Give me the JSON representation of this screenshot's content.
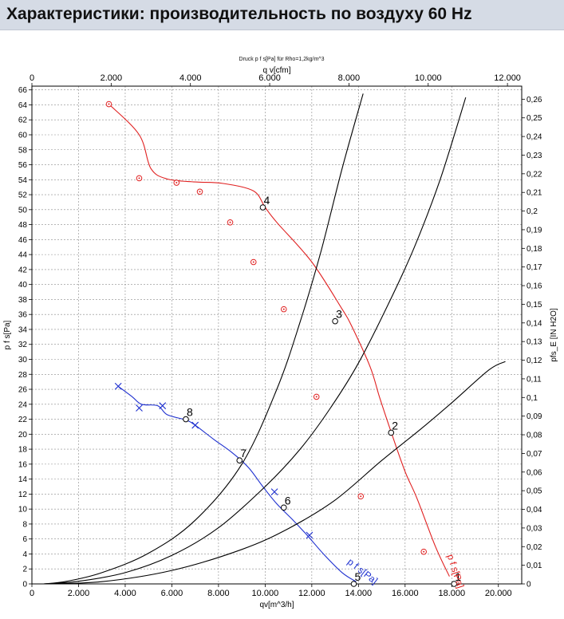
{
  "page_title": "Характеристики: производительность по воздуху 60 Hz",
  "chart_data": {
    "type": "line",
    "subtitle": "Druck p f s[Pa] für Rho=1,2kg/m^3",
    "x_bottom": {
      "label": "qv[m^3/h]",
      "range": [
        0,
        21000
      ],
      "ticks": [
        0,
        2000,
        4000,
        6000,
        8000,
        10000,
        12000,
        14000,
        16000,
        18000,
        20000
      ],
      "tick_labels": [
        "0",
        "2.000",
        "4.000",
        "6.000",
        "8.000",
        "10.000",
        "12.000",
        "14.000",
        "16.000",
        "18.000",
        "20.000"
      ]
    },
    "x_top": {
      "label": "q v[cfm]",
      "range": [
        0,
        12360
      ],
      "ticks": [
        0,
        2000,
        4000,
        6000,
        8000,
        10000,
        12000
      ],
      "tick_labels": [
        "0",
        "2.000",
        "4.000",
        "6.000",
        "8.000",
        "10.000",
        "12.000"
      ]
    },
    "y_left": {
      "label": "p f s[Pa]",
      "range": [
        0,
        66.5
      ],
      "ticks": [
        0,
        2,
        4,
        6,
        8,
        10,
        12,
        14,
        16,
        18,
        20,
        22,
        24,
        26,
        28,
        30,
        32,
        34,
        36,
        38,
        40,
        42,
        44,
        46,
        48,
        50,
        52,
        54,
        56,
        58,
        60,
        62,
        64,
        66
      ],
      "tick_labels": [
        "0",
        "2",
        "4",
        "6",
        "8",
        "10",
        "12",
        "14",
        "16",
        "18",
        "20",
        "22",
        "24",
        "26",
        "28",
        "30",
        "32",
        "34",
        "36",
        "38",
        "40",
        "42",
        "44",
        "46",
        "48",
        "50",
        "52",
        "54",
        "56",
        "58",
        "60",
        "62",
        "64",
        "66"
      ]
    },
    "y_right": {
      "label": "pfs_E [IN H2O]",
      "range": [
        0,
        0.267
      ],
      "ticks": [
        0,
        0.01,
        0.02,
        0.03,
        0.04,
        0.05,
        0.06,
        0.07,
        0.08,
        0.09,
        0.1,
        0.11,
        0.12,
        0.13,
        0.14,
        0.15,
        0.16,
        0.17,
        0.18,
        0.19,
        0.2,
        0.21,
        0.22,
        0.23,
        0.24,
        0.25,
        0.26
      ],
      "tick_labels": [
        "0",
        "0,01",
        "0,02",
        "0,03",
        "0,04",
        "0,05",
        "0,06",
        "0,07",
        "0,08",
        "0,09",
        "0,1",
        "0,11",
        "0,12",
        "0,13",
        "0,14",
        "0,15",
        "0,16",
        "0,17",
        "0,18",
        "0,19",
        "0,2",
        "0,21",
        "0,22",
        "0,23",
        "0,24",
        "0,25",
        "0,26"
      ]
    },
    "grid": true,
    "series": [
      {
        "name": "p f s[Pa]",
        "color": "#e02020",
        "marker": "circle",
        "points": [
          [
            3300,
            64.1
          ],
          [
            4600,
            60
          ],
          [
            5100,
            55.5
          ],
          [
            5800,
            54.1
          ],
          [
            7000,
            53.7
          ],
          [
            8200,
            53.5
          ],
          [
            9500,
            52.5
          ],
          [
            10000,
            50.3
          ],
          [
            10500,
            48.3
          ],
          [
            12000,
            43
          ],
          [
            13300,
            36.7
          ],
          [
            13700,
            34.5
          ],
          [
            14500,
            29
          ],
          [
            14900,
            25
          ],
          [
            15400,
            20.3
          ],
          [
            16000,
            15
          ],
          [
            16500,
            11.5
          ],
          [
            17300,
            5
          ],
          [
            17900,
            1
          ]
        ],
        "marker_points": [
          [
            3300,
            64.1
          ],
          [
            4600,
            54.2
          ],
          [
            6200,
            53.6
          ],
          [
            7200,
            52.4
          ],
          [
            8500,
            48.3
          ],
          [
            9500,
            43
          ],
          [
            10800,
            36.7
          ],
          [
            12200,
            25
          ],
          [
            14100,
            11.7
          ],
          [
            16800,
            4.3
          ]
        ]
      },
      {
        "name": "p f s[Pa]",
        "color": "#1d2fcf",
        "marker": "x",
        "points": [
          [
            3700,
            26.4
          ],
          [
            4300,
            25
          ],
          [
            4700,
            24
          ],
          [
            5400,
            23.8
          ],
          [
            5800,
            22.6
          ],
          [
            6600,
            21.9
          ],
          [
            7000,
            21.2
          ],
          [
            7800,
            19.3
          ],
          [
            8600,
            17.5
          ],
          [
            9300,
            15.5
          ],
          [
            9900,
            13
          ],
          [
            10500,
            10.7
          ],
          [
            11200,
            8.5
          ],
          [
            11800,
            6.5
          ],
          [
            12500,
            4
          ],
          [
            13300,
            1.5
          ],
          [
            13900,
            0.3
          ]
        ],
        "marker_points": [
          [
            3700,
            26.4
          ],
          [
            4600,
            23.5
          ],
          [
            5600,
            23.8
          ],
          [
            7000,
            21.2
          ],
          [
            10400,
            12.3
          ],
          [
            11900,
            6.5
          ]
        ]
      },
      {
        "name": "",
        "color": "#000000",
        "marker": "none",
        "points": [
          [
            500,
            0
          ],
          [
            1500,
            0.35
          ],
          [
            3000,
            1.5
          ],
          [
            5000,
            4.1
          ],
          [
            7000,
            8.5
          ],
          [
            9000,
            16
          ],
          [
            10500,
            26
          ],
          [
            11500,
            35
          ],
          [
            12400,
            44.5
          ],
          [
            13300,
            55.5
          ],
          [
            14200,
            65.5
          ]
        ]
      },
      {
        "name": "",
        "color": "#000000",
        "marker": "none",
        "points": [
          [
            500,
            0
          ],
          [
            2000,
            0.35
          ],
          [
            4000,
            1.5
          ],
          [
            6000,
            3.8
          ],
          [
            8000,
            7.5
          ],
          [
            10000,
            13
          ],
          [
            11500,
            18
          ],
          [
            12800,
            23.5
          ],
          [
            14000,
            29.5
          ],
          [
            15300,
            37.5
          ],
          [
            16400,
            45
          ],
          [
            17500,
            54
          ],
          [
            18600,
            65
          ]
        ]
      },
      {
        "name": "",
        "color": "#000000",
        "marker": "none",
        "points": [
          [
            500,
            0
          ],
          [
            3000,
            0.3
          ],
          [
            6000,
            1.8
          ],
          [
            9000,
            4.6
          ],
          [
            11000,
            7.4
          ],
          [
            13000,
            11.2
          ],
          [
            15000,
            16.5
          ],
          [
            16600,
            20.5
          ],
          [
            18000,
            24.2
          ],
          [
            19600,
            28.6
          ],
          [
            20300,
            29.7
          ]
        ]
      }
    ],
    "operating_points": [
      {
        "label": "1",
        "x": 18100,
        "y": 0
      },
      {
        "label": "2",
        "x": 15400,
        "y": 20.2
      },
      {
        "label": "3",
        "x": 13000,
        "y": 35.1
      },
      {
        "label": "4",
        "x": 9900,
        "y": 50.3
      },
      {
        "label": "5",
        "x": 13800,
        "y": 0
      },
      {
        "label": "6",
        "x": 10800,
        "y": 10.2
      },
      {
        "label": "7",
        "x": 8900,
        "y": 16.5
      },
      {
        "label": "8",
        "x": 6600,
        "y": 22
      }
    ],
    "annotations": [
      {
        "text": "p f s[Pa]",
        "color": "#e02020",
        "x": 17800,
        "y": 3.8,
        "rotate": 72
      },
      {
        "text": "p f s[Pa]",
        "color": "#1d2fcf",
        "x": 13500,
        "y": 2.8,
        "rotate": 38
      }
    ]
  }
}
